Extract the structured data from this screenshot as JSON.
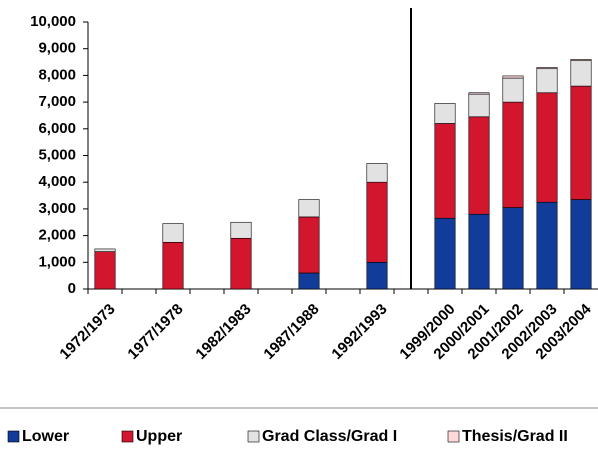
{
  "chart_data": {
    "type": "stacked-bar",
    "categories": [
      "1972/1973",
      null,
      "1977/1978",
      null,
      "1982/1983",
      null,
      "1987/1988",
      null,
      "1992/1993",
      null,
      "1999/2000",
      "2000/2001",
      "2001/2002",
      "2002/2003",
      "2003/2004"
    ],
    "series": [
      {
        "name": "Lower",
        "color": "#123c99",
        "values": [
          0,
          null,
          0,
          null,
          0,
          null,
          600,
          null,
          1000,
          null,
          2650,
          2800,
          3050,
          3250,
          3350
        ]
      },
      {
        "name": "Upper",
        "color": "#d2162e",
        "values": [
          1400,
          null,
          1750,
          null,
          1900,
          null,
          2100,
          null,
          3000,
          null,
          3550,
          3650,
          3950,
          4100,
          4250
        ]
      },
      {
        "name": "Grad Class/Grad I",
        "color": "#e2e2e2",
        "values": [
          100,
          null,
          700,
          null,
          600,
          null,
          650,
          null,
          700,
          null,
          750,
          850,
          900,
          900,
          950
        ]
      },
      {
        "name": "Thesis/Grad II",
        "color": "#ffd9d9",
        "values": [
          0,
          null,
          0,
          null,
          0,
          null,
          0,
          null,
          0,
          null,
          0,
          50,
          80,
          50,
          50
        ]
      }
    ],
    "ylim": [
      0,
      10000
    ],
    "yticks": [
      0,
      {
        "value": 1000,
        "label": "1,000"
      },
      {
        "value": 2000,
        "label": "2,000"
      },
      {
        "value": 3000,
        "label": "3,000"
      },
      {
        "value": 4000,
        "label": "4,000"
      },
      {
        "value": 5000,
        "label": "5,000"
      },
      {
        "value": 6000,
        "label": "6,000"
      },
      {
        "value": 7000,
        "label": "7,000"
      },
      {
        "value": 8000,
        "label": "8,000"
      },
      {
        "value": 9000,
        "label": "9,000"
      },
      {
        "value": 10000,
        "label": "10,000"
      }
    ],
    "legend": "bottom"
  }
}
